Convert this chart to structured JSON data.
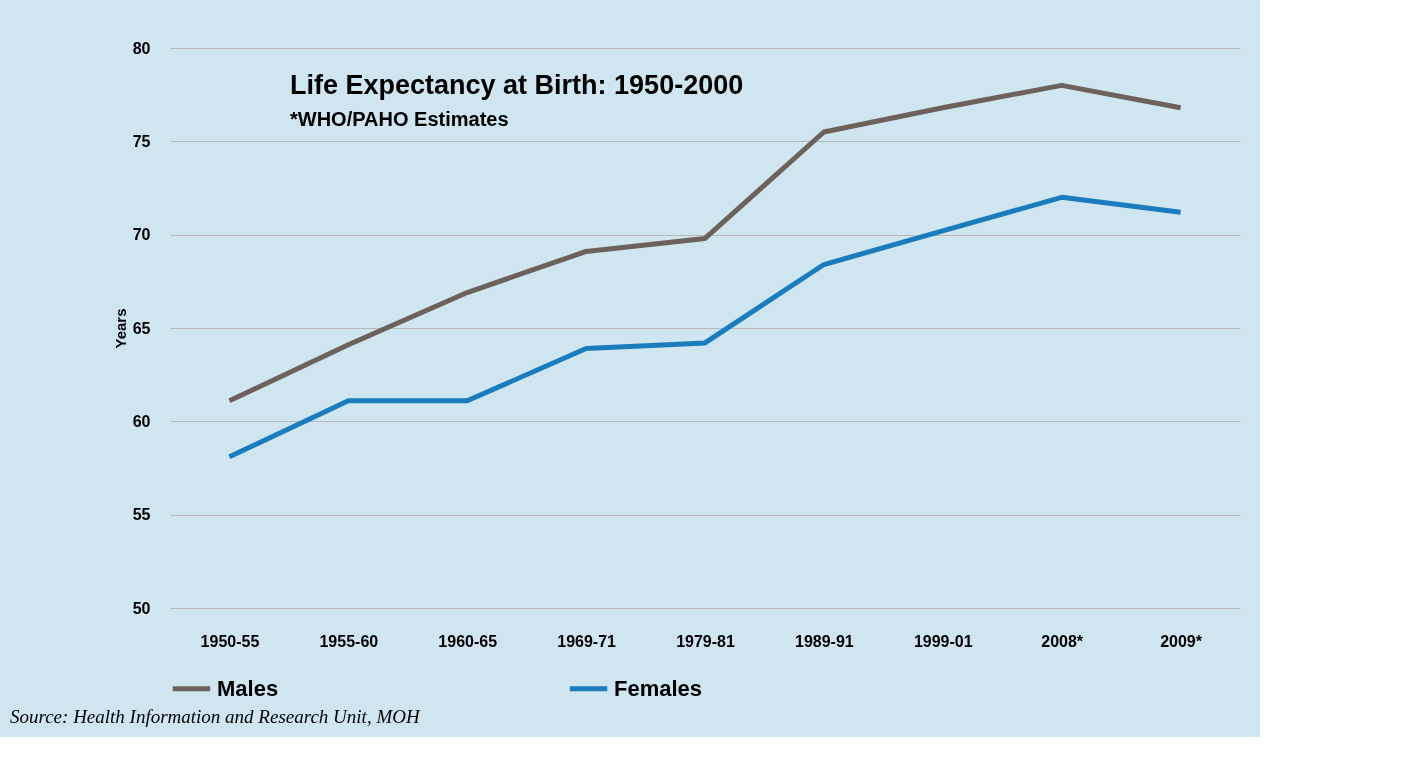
{
  "chart_data": {
    "type": "line",
    "title": "Life Expectancy at Birth: 1950-2000",
    "subtitle": "*WHO/PAHO Estimates",
    "ylabel": "Years",
    "categories": [
      "1950-55",
      "1955-60",
      "1960-65",
      "1969-71",
      "1979-81",
      "1989-91",
      "1999-01",
      "2008*",
      "2009*"
    ],
    "series": [
      {
        "name": "Males",
        "color": "#6d625b",
        "values": [
          61.1,
          64.1,
          66.9,
          69.1,
          69.8,
          75.5,
          76.8,
          78.0,
          76.8
        ]
      },
      {
        "name": "Females",
        "color": "#1a7bbd",
        "values": [
          58.1,
          61.1,
          61.1,
          63.9,
          64.2,
          68.4,
          70.2,
          72.0,
          71.2
        ]
      }
    ],
    "ylim": [
      50,
      80
    ],
    "yticks": [
      50,
      55,
      60,
      65,
      70,
      75,
      80
    ],
    "grid": "y",
    "legend": "bottom",
    "marker": "none",
    "line_style": "solid",
    "annotations": [
      "Source: Health Information and Research Unit, MOH"
    ]
  }
}
